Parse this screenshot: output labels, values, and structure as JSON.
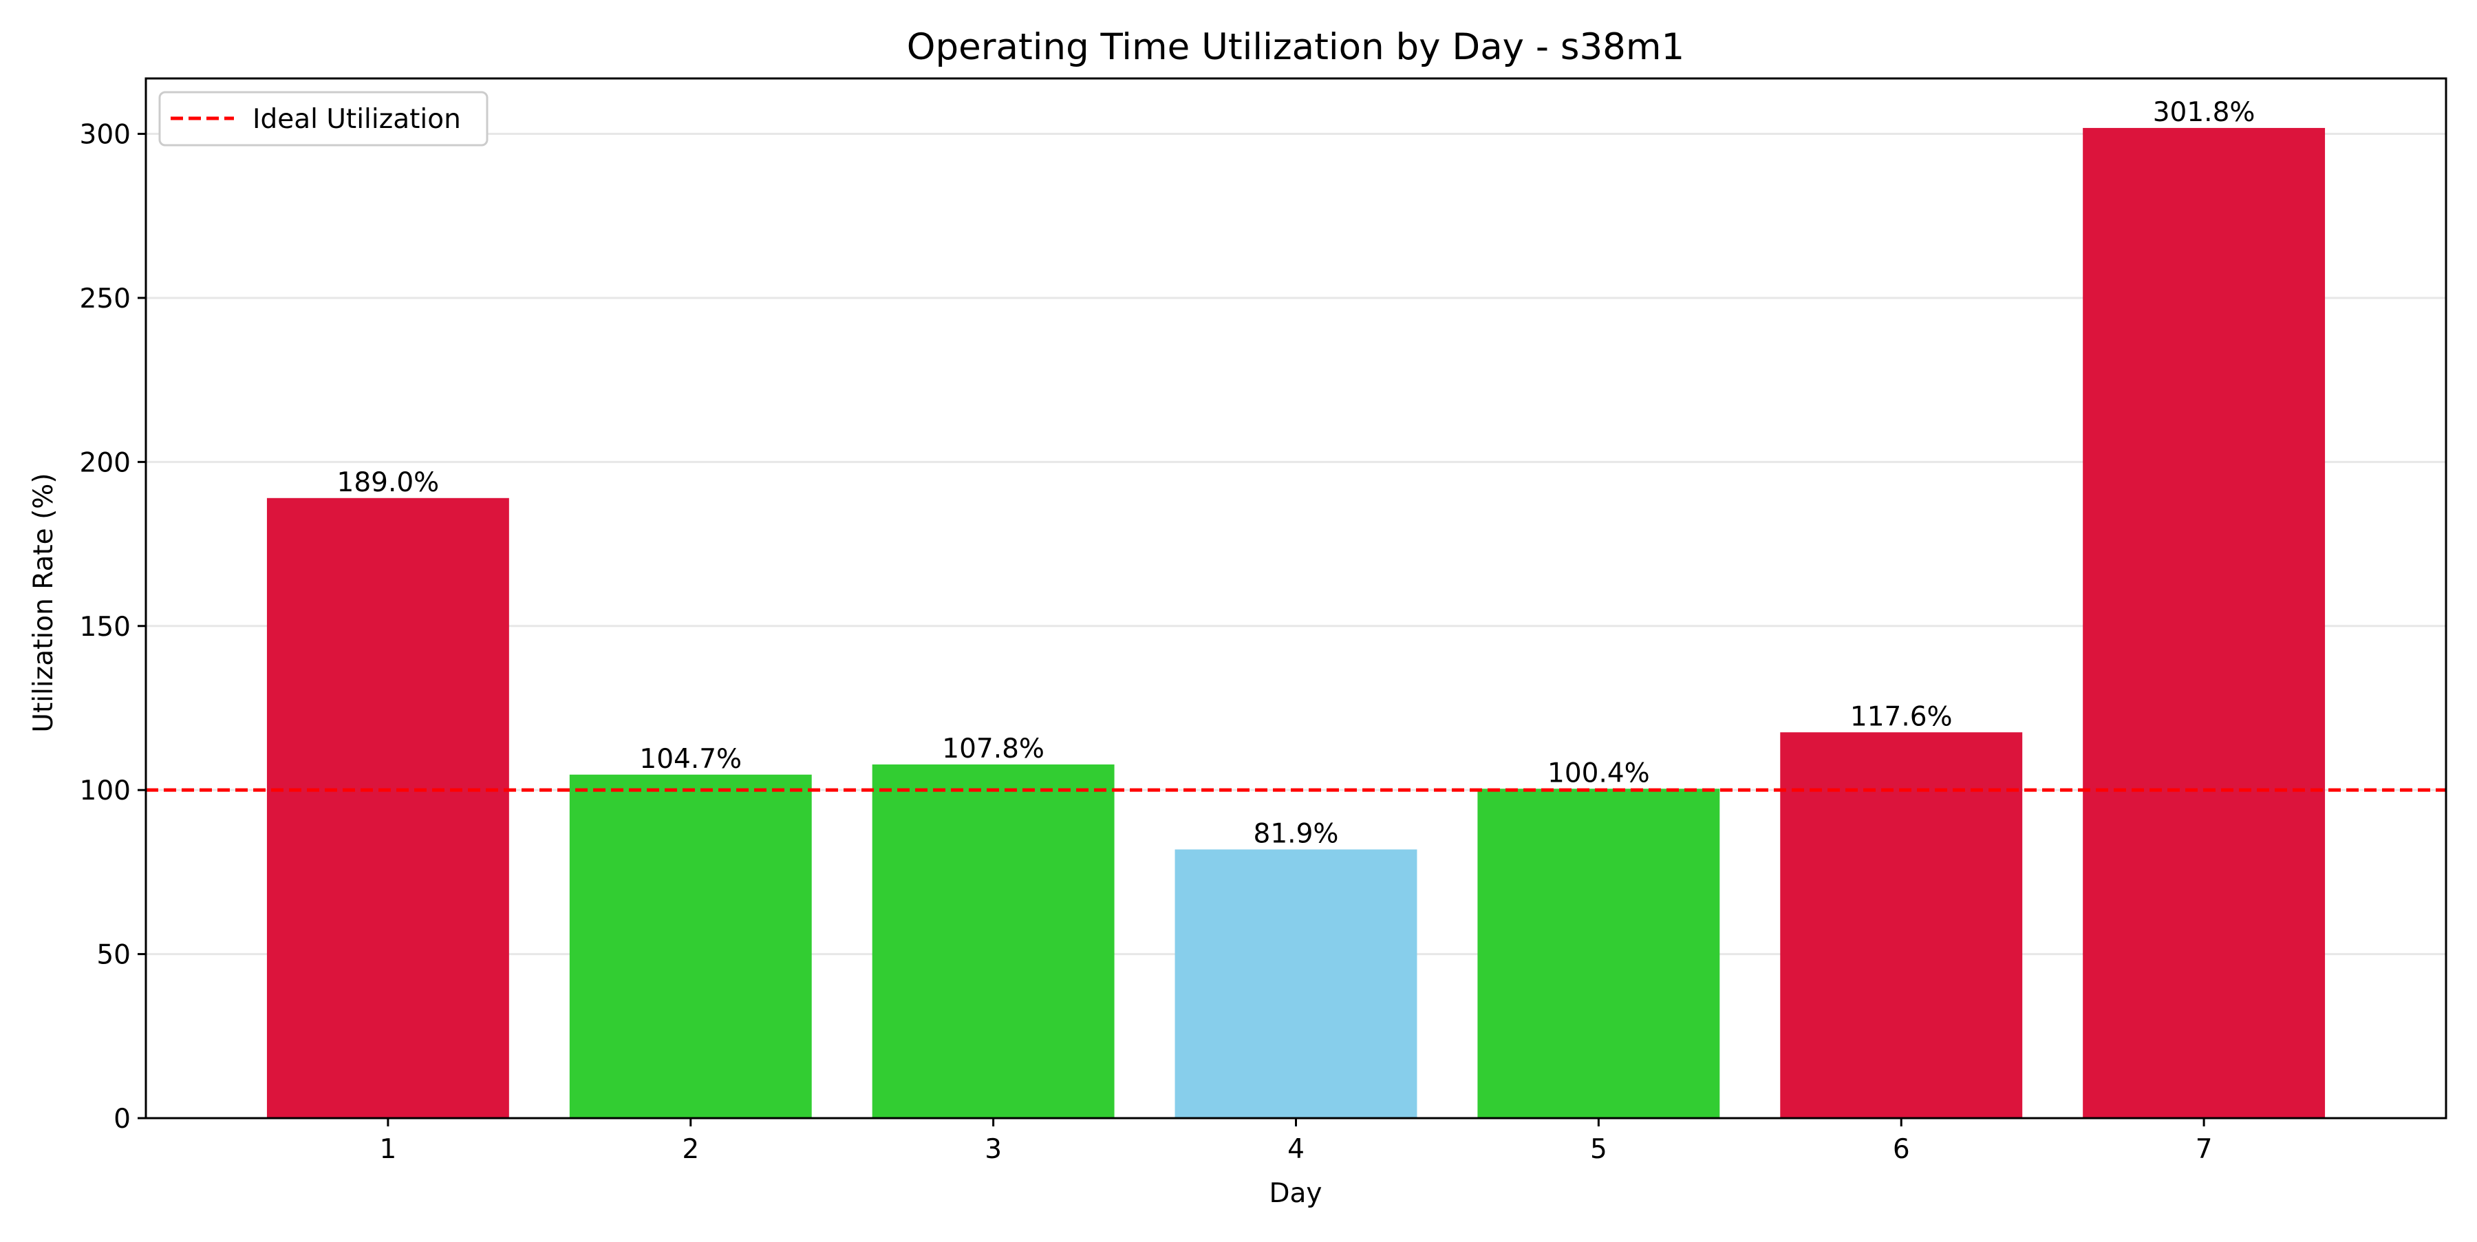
{
  "chart_data": {
    "type": "bar",
    "title": "Operating Time Utilization by Day - s38m1",
    "xlabel": "Day",
    "ylabel": "Utilization Rate (%)",
    "categories": [
      "1",
      "2",
      "3",
      "4",
      "5",
      "6",
      "7"
    ],
    "values": [
      189.0,
      104.7,
      107.8,
      81.9,
      100.4,
      117.6,
      301.8
    ],
    "data_labels": [
      "189.0%",
      "104.7%",
      "107.8%",
      "81.9%",
      "100.4%",
      "117.6%",
      "301.8%"
    ],
    "bar_colors": [
      "#dc143c",
      "#32cd32",
      "#32cd32",
      "#87ceeb",
      "#32cd32",
      "#dc143c",
      "#dc143c"
    ],
    "ylim": [
      0,
      316.89
    ],
    "yticks": [
      0,
      50,
      100,
      150,
      200,
      250,
      300
    ],
    "grid": "horizontal",
    "reference_line": {
      "value": 100,
      "color": "#ff0000",
      "style": "dashed",
      "label": "Ideal Utilization"
    },
    "legend": {
      "placement": "top-left",
      "entries": [
        "Ideal Utilization"
      ]
    }
  }
}
